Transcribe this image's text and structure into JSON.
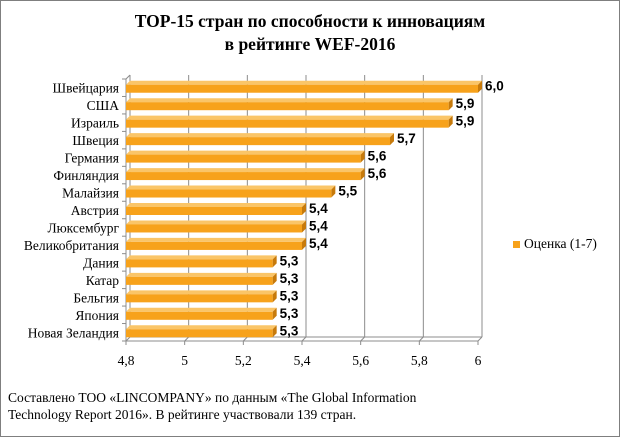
{
  "chart_data": {
    "type": "bar",
    "orientation": "horizontal",
    "title_lines": [
      "TOP-15 стран  по способности к инновациям",
      "в рейтинге WEF-2016"
    ],
    "categories": [
      "Швейцария",
      "США",
      "Израиль",
      "Швеция",
      "Германия",
      "Финляндия",
      "Малайзия",
      "Австрия",
      "Люксембург",
      "Великобритания",
      "Дания",
      "Катар",
      "Бельгия",
      "Япония",
      "Новая Зеландия"
    ],
    "series": [
      {
        "name": "Оценка (1-7)",
        "values": [
          6.0,
          5.9,
          5.9,
          5.7,
          5.6,
          5.6,
          5.5,
          5.4,
          5.4,
          5.4,
          5.3,
          5.3,
          5.3,
          5.3,
          5.3
        ],
        "data_labels": [
          "6,0",
          "5,9",
          "5,9",
          "5,7",
          "5,6",
          "5,6",
          "5,5",
          "5,4",
          "5,4",
          "5,4",
          "5,3",
          "5,3",
          "5,3",
          "5,3",
          "5,3"
        ]
      }
    ],
    "xlim": [
      4.8,
      6.0
    ],
    "xticks": [
      4.8,
      5.0,
      5.2,
      5.4,
      5.6,
      5.8,
      6.0
    ],
    "xtick_labels": [
      "4,8",
      "5",
      "5,2",
      "5,4",
      "5,6",
      "5,8",
      "6"
    ],
    "xlabel": "",
    "ylabel": "",
    "grid": "vertical",
    "legend_position": "right",
    "style_3d": true,
    "colors": {
      "bar_face": "#F7A21B",
      "bar_top": "#FAC568",
      "bar_side": "#C77A0B",
      "grid": "#8C8C8C",
      "wall": "#8C8C8C"
    }
  },
  "footnote_lines": [
    "Составлено ТОО «LINCOMPANY» по данным  «The Global Information",
    "Technology Report 2016». В рейтинге участвовали 139 стран."
  ]
}
